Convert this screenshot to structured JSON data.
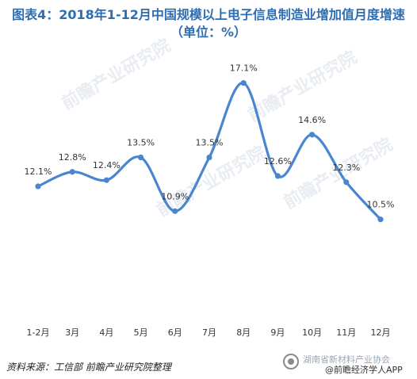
{
  "chart_data": {
    "type": "line",
    "title": "图表4：2018年1-12月中国规模以上电子信息制造业增加值月度增速",
    "subtitle": "（单位：%）",
    "categories": [
      "1-2月",
      "3月",
      "4月",
      "5月",
      "6月",
      "7月",
      "8月",
      "9月",
      "10月",
      "11月",
      "12月"
    ],
    "series": [
      {
        "values": [
          12.1,
          12.8,
          12.4,
          13.5,
          10.9,
          13.5,
          17.1,
          12.6,
          14.6,
          12.3,
          10.5
        ],
        "labels": [
          "12.1%",
          "12.8%",
          "12.4%",
          "13.5%",
          "10.9%",
          "13.5%",
          "17.1%",
          "12.6%",
          "14.6%",
          "12.3%",
          "10.5%"
        ],
        "color": "#4a86d0"
      }
    ],
    "ylim": [
      6.5,
      18.2
    ],
    "grid": false,
    "legend": "none"
  },
  "footer": {
    "source": "资料来源：工信部 前瞻产业研究院整理",
    "brand_line1": "湖南省新材料产业协会",
    "brand_line2": "@前瞻经济学人APP"
  },
  "watermark": "前瞻产业研究院",
  "colors": {
    "title": "#2f6db1",
    "line": "#4a86d0"
  }
}
